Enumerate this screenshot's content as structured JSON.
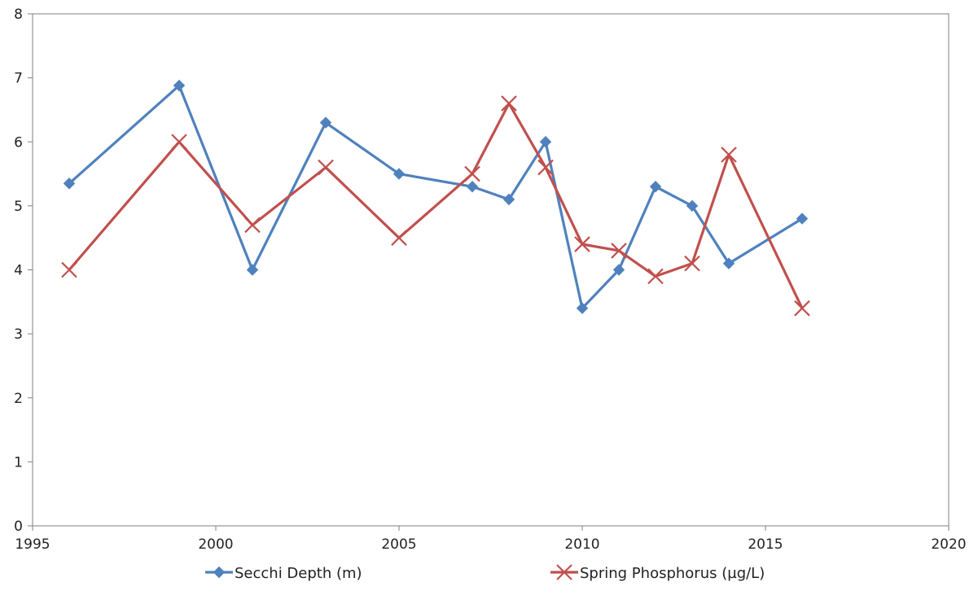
{
  "chart_data": {
    "type": "line",
    "title": "",
    "xlabel": "",
    "ylabel": "",
    "xlim": [
      1995,
      2020
    ],
    "ylim": [
      0,
      8
    ],
    "x_ticks": [
      "1995",
      "2000",
      "2005",
      "2010",
      "2015",
      "2020"
    ],
    "y_ticks": [
      "0",
      "1",
      "2",
      "3",
      "4",
      "5",
      "6",
      "7",
      "8"
    ],
    "grid": false,
    "legend_position": "bottom",
    "series": [
      {
        "name": "Secchi Depth (m)",
        "color": "#4f81bd",
        "marker": "diamond",
        "points": [
          [
            1996,
            5.35
          ],
          [
            1999,
            6.88
          ],
          [
            2001,
            4.0
          ],
          [
            2003,
            6.3
          ],
          [
            2005,
            5.5
          ],
          [
            2007,
            5.3
          ],
          [
            2008,
            5.1
          ],
          [
            2009,
            6.0
          ],
          [
            2010,
            3.4
          ],
          [
            2011,
            4.0
          ],
          [
            2012,
            5.3
          ],
          [
            2013,
            5.0
          ],
          [
            2014,
            4.1
          ],
          [
            2016,
            4.8
          ]
        ]
      },
      {
        "name": "Spring Phosphorus (µg/L)",
        "color": "#c0504d",
        "marker": "x",
        "points": [
          [
            1996,
            4.0
          ],
          [
            1999,
            6.0
          ],
          [
            2001,
            4.7
          ],
          [
            2003,
            5.6
          ],
          [
            2005,
            4.5
          ],
          [
            2007,
            5.5
          ],
          [
            2008,
            6.6
          ],
          [
            2009,
            5.6
          ],
          [
            2010,
            4.4
          ],
          [
            2011,
            4.3
          ],
          [
            2012,
            3.9
          ],
          [
            2013,
            4.1
          ],
          [
            2014,
            5.8
          ],
          [
            2016,
            3.4
          ]
        ]
      }
    ]
  }
}
